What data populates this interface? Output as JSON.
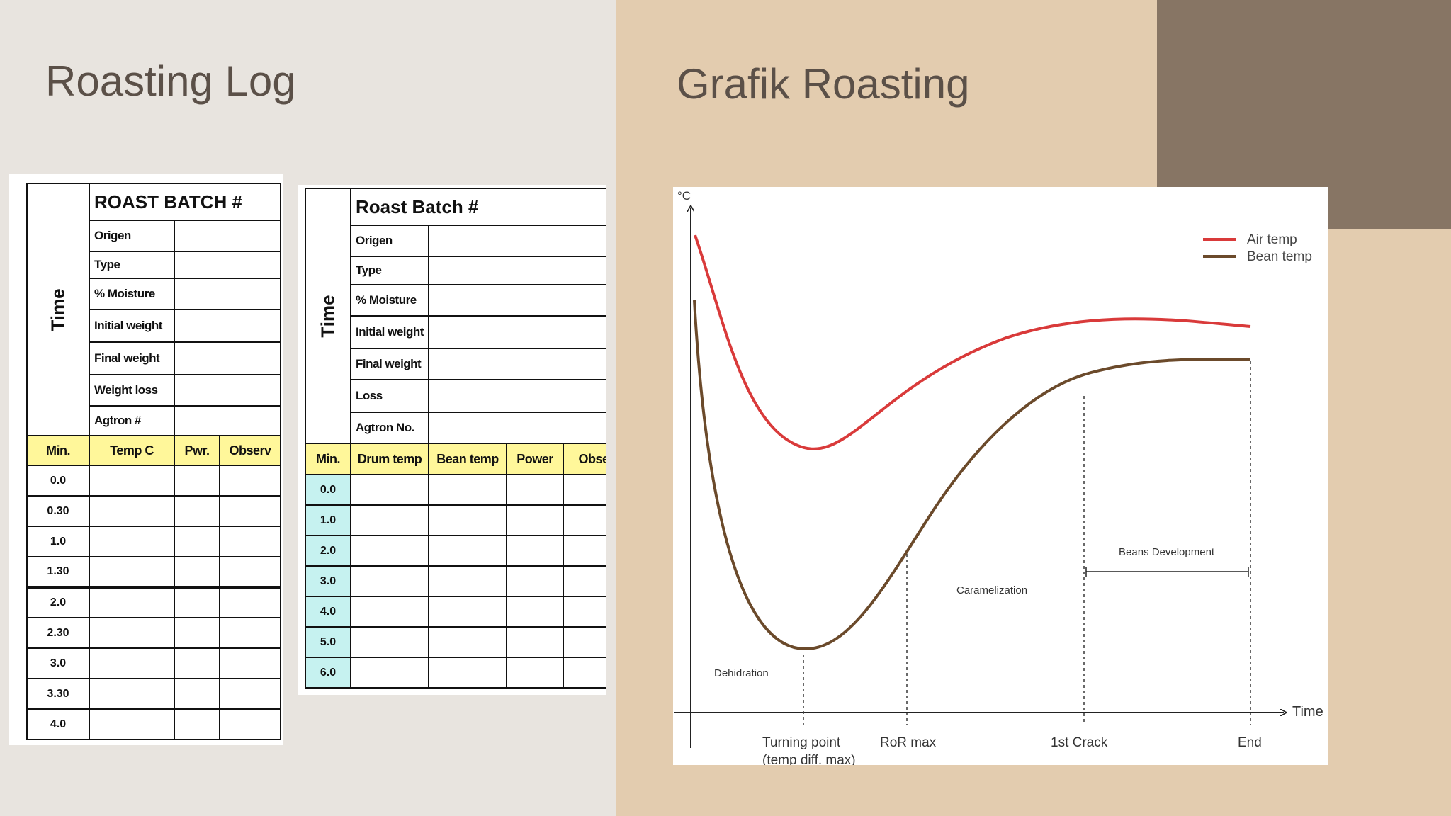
{
  "left": {
    "title": "Roasting Log",
    "log1": {
      "time_label": "Time",
      "batch_title": "ROAST BATCH #",
      "fields": [
        "Origen",
        "Type",
        "% Moisture",
        "Initial weight",
        "Final weight",
        "Weight loss",
        "Agtron #"
      ],
      "headers": [
        "Min.",
        "Temp C",
        "Pwr.",
        "Observ"
      ],
      "minutes": [
        "0.0",
        "0.30",
        "1.0",
        "1.30",
        "2.0",
        "2.30",
        "3.0",
        "3.30",
        "4.0"
      ]
    },
    "log2": {
      "time_label": "Time",
      "batch_title": "Roast Batch #",
      "fields": [
        "Origen",
        "Type",
        "% Moisture",
        "Initial weight",
        "Final weight",
        "Loss",
        "Agtron No."
      ],
      "headers": [
        "Min.",
        "Drum temp",
        "Bean temp",
        "Power",
        "Obse"
      ],
      "minutes": [
        "0.0",
        "1.0",
        "2.0",
        "3.0",
        "4.0",
        "5.0",
        "6.0"
      ]
    }
  },
  "right": {
    "title": "Grafik Roasting",
    "chart": {
      "y_unit": "°C",
      "x_label": "Time",
      "legend": [
        {
          "name": "Air temp",
          "color": "#d93a3a"
        },
        {
          "name": "Bean temp",
          "color": "#6b4a2b"
        }
      ],
      "phases": [
        "Dehidration",
        "Caramelization",
        "Beans Development"
      ],
      "markers": [
        "Turning point",
        "(temp diff. max)",
        "RoR max",
        "1st Crack",
        "End"
      ]
    }
  },
  "colors": {
    "left_bg": "#e8e4df",
    "right_bg": "#e3ccaf",
    "corner_block": "#877564",
    "title_text": "#5b5048",
    "header_yellow": "#fff79a",
    "minute_cyan": "#c6f2f0"
  }
}
